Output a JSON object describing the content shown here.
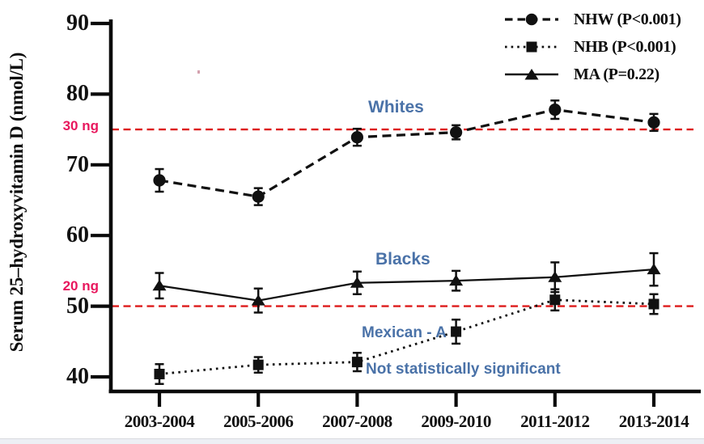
{
  "figure": {
    "y_axis_title": "Serum 25–hydroxyvitamin D (nmol/L)",
    "annotations": {
      "whites": "Whites",
      "blacks": "Blacks",
      "mexican": "Mexican - A",
      "not_significant": "Not statistically significant",
      "ref_30": "30 ng",
      "ref_20": "20 ng"
    },
    "colors": {
      "series_black": "#111111",
      "reference_line_red": "#dd1b1b",
      "reference_label_pink": "#e8175d",
      "annotation_blue": "#4a72a8",
      "footer_strip": "#edeff4"
    }
  },
  "chart_data": {
    "type": "line",
    "title": "",
    "xlabel": "",
    "ylabel": "Serum 25–hydroxyvitamin D (nmol/L)",
    "categories": [
      "2003-2004",
      "2005-2006",
      "2007-2008",
      "2009-2010",
      "2011-2012",
      "2013-2014"
    ],
    "y_ticks": [
      90,
      80,
      70,
      60,
      50,
      40
    ],
    "ylim": [
      37.9,
      90.6
    ],
    "grid": false,
    "legend_position": "top-right",
    "series": [
      {
        "name": "NHW",
        "label": "NHW (P<0.001)",
        "line": "dashed",
        "marker": "circle",
        "values": [
          67.8,
          65.5,
          73.9,
          74.6,
          77.8,
          76.0
        ],
        "errors": [
          1.6,
          1.2,
          1.2,
          1.0,
          1.3,
          1.2
        ]
      },
      {
        "name": "NHB",
        "label": "NHB (P<0.001)",
        "line": "dotted",
        "marker": "square",
        "values": [
          40.4,
          41.7,
          42.1,
          46.4,
          50.9,
          50.3
        ],
        "errors": [
          1.4,
          1.1,
          1.3,
          1.7,
          1.5,
          1.4
        ]
      },
      {
        "name": "MA",
        "label": "MA (P=0.22)",
        "line": "solid",
        "marker": "triangle",
        "values": [
          52.9,
          50.8,
          53.3,
          53.6,
          54.1,
          55.2
        ],
        "errors": [
          1.8,
          1.7,
          1.6,
          1.4,
          2.1,
          2.3
        ]
      }
    ],
    "reference_lines": [
      {
        "value": 75,
        "label": "30 ng"
      },
      {
        "value": 50,
        "label": "20 ng"
      }
    ]
  }
}
